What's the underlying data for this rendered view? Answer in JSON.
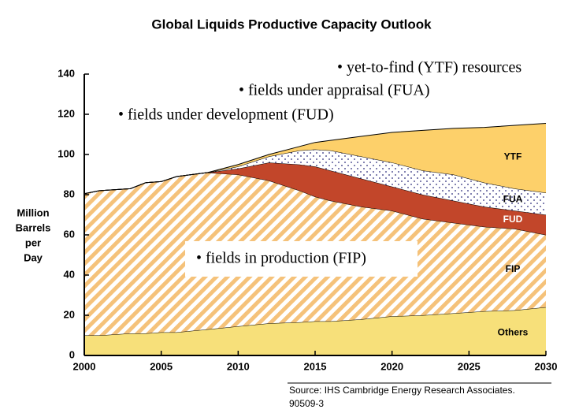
{
  "chart_data": {
    "type": "stacked_area",
    "title": "Global Liquids Productive Capacity Outlook",
    "y_label": [
      "Million",
      "Barrels",
      "per",
      "Day"
    ],
    "x": [
      2000,
      2001,
      2003,
      2004,
      2005,
      2006,
      2008,
      2010,
      2012,
      2014,
      2015,
      2016,
      2018,
      2020,
      2022,
      2024,
      2026,
      2028,
      2030
    ],
    "series": [
      {
        "name": "Others",
        "color": "#f7e07a",
        "fill_style": "solid",
        "values": [
          10,
          10,
          11,
          11,
          11.5,
          11.5,
          13,
          14.5,
          16,
          16.5,
          17,
          17,
          18,
          19.5,
          20,
          21,
          22,
          22.5,
          24
        ]
      },
      {
        "name": "FIP",
        "color": "#f5c27a",
        "fill_style": "hatch",
        "values": [
          70.5,
          72,
          72,
          75,
          75,
          77.5,
          78,
          75.5,
          71,
          65.5,
          62,
          60,
          56,
          52.5,
          48,
          45,
          42,
          40.5,
          36
        ]
      },
      {
        "name": "FUD",
        "color": "#c2462a",
        "fill_style": "solid",
        "values": [
          0,
          0,
          0,
          0,
          0,
          0,
          0,
          3,
          9,
          13,
          15,
          15,
          14,
          12,
          12,
          11,
          10,
          9,
          10
        ]
      },
      {
        "name": "FUA",
        "color": "#2a2a7a",
        "fill_style": "dots",
        "values": [
          0,
          0,
          0,
          0,
          0,
          0,
          0,
          1,
          3,
          7,
          8.5,
          10,
          11,
          12,
          12,
          13,
          12,
          11,
          11
        ]
      },
      {
        "name": "YTF",
        "color": "#fdd06a",
        "fill_style": "solid",
        "values": [
          0,
          0,
          0,
          0,
          0,
          0,
          0,
          1,
          1,
          2,
          3.5,
          5,
          10,
          15,
          20,
          23,
          27.5,
          31.5,
          34.5
        ]
      }
    ],
    "xlim": [
      2000,
      2030
    ],
    "xticks": [
      2000,
      2005,
      2010,
      2015,
      2020,
      2025,
      2030
    ],
    "ylim": [
      0,
      140
    ],
    "yticks": [
      0,
      20,
      40,
      60,
      80,
      100,
      120,
      140
    ],
    "annotations": [
      "• yet-to-find (YTF) resources",
      "• fields under appraisal (FUA)",
      "• fields under development (FUD)",
      "• fields in production (FIP)"
    ],
    "source": [
      "Source: IHS Cambridge Energy Research Associates.",
      "90509-3"
    ]
  }
}
